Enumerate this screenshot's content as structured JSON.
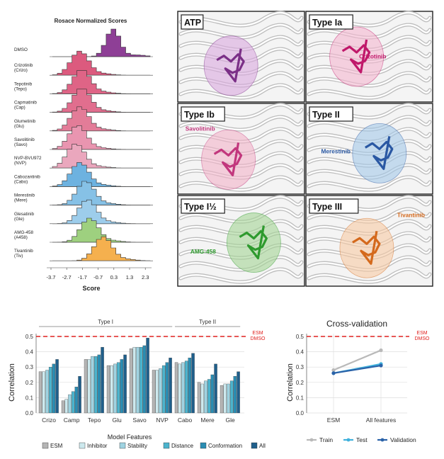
{
  "ridge": {
    "title": "Rosace Normalized Scores",
    "xlabel": "Score",
    "ticks": [
      "-3.7",
      "-2.7",
      "-1.7",
      "-0.7",
      "0.3",
      "1.3",
      "2.3"
    ],
    "rows": [
      {
        "line1": "DMSO",
        "line2": "",
        "color": "#8e3f96"
      },
      {
        "line1": "Crizotinib",
        "line2": "(Crizo)",
        "color": "#dc5a7e"
      },
      {
        "line1": "Tepotinib",
        "line2": "(Tepo)",
        "color": "#df6486"
      },
      {
        "line1": "Capmatinib",
        "line2": "(Cap)",
        "color": "#e16e8e"
      },
      {
        "line1": "Glumetinib",
        "line2": "(Glu)",
        "color": "#e37c98"
      },
      {
        "line1": "Savolitinib",
        "line2": "(Savo)",
        "color": "#e995b0"
      },
      {
        "line1": "NVP-BVU972",
        "line2": "(NVP)",
        "color": "#eaa7bd"
      },
      {
        "line1": "Cabozantinib",
        "line2": "(Cabo)",
        "color": "#6db2e0"
      },
      {
        "line1": "Merestinib",
        "line2": "(Mere)",
        "color": "#86c1e6"
      },
      {
        "line1": "Glesatinib",
        "line2": "(Gle)",
        "color": "#9dcdeb"
      },
      {
        "line1": "AMG-458",
        "line2": "(A458)",
        "color": "#9ed07f"
      },
      {
        "line1": "Tivantinib",
        "line2": "(Tiv)",
        "color": "#f5b04e"
      }
    ]
  },
  "structures": [
    {
      "title": "ATP",
      "ligand": "",
      "lig_color": "#7b2f87",
      "zone_color": "#d9a8de"
    },
    {
      "title": "Type Ia",
      "ligand": "Crizotinib",
      "lig_color": "#c0186a",
      "zone_color": "#f4b6cf"
    },
    {
      "title": "Type Ib",
      "ligand": "Savolitinib",
      "lig_color": "#c2377d",
      "zone_color": "#f2b3c8"
    },
    {
      "title": "Type II",
      "ligand": "Merestinib",
      "lig_color": "#2a58a3",
      "zone_color": "#a4c8e8"
    },
    {
      "title": "Type I½",
      "ligand": "AMG-458",
      "lig_color": "#2e9a2e",
      "zone_color": "#a3d394"
    },
    {
      "title": "Type III",
      "ligand": "Tivantinib",
      "lig_color": "#d4691c",
      "zone_color": "#f7c9a3"
    }
  ],
  "chart_data": [
    {
      "type": "bar",
      "ylabel": "Correlation",
      "xlabel": "Model Features",
      "ylim": [
        0,
        0.5
      ],
      "yticks": [
        "0.0",
        "0.1",
        "0.2",
        "0.3",
        "0.4",
        "0.5"
      ],
      "categories": [
        "Crizo",
        "Camp",
        "Tepo",
        "Glu",
        "Savo",
        "NVP",
        "Cabo",
        "Mere",
        "Gle"
      ],
      "groups": [
        {
          "label": "Type I",
          "from": 0,
          "to": 5
        },
        {
          "label": "Type II",
          "from": 6,
          "to": 8
        }
      ],
      "reference": {
        "value": 0.5,
        "label_line1": "ESM",
        "label_line2": "DMSO",
        "color": "#e0201e"
      },
      "series": [
        {
          "name": "ESM",
          "color": "#b5b5b5",
          "values": [
            0.27,
            0.08,
            0.35,
            0.31,
            0.42,
            0.28,
            0.33,
            0.2,
            0.18
          ]
        },
        {
          "name": "Inhibitor",
          "color": "#cde9ee",
          "values": [
            0.27,
            0.09,
            0.35,
            0.31,
            0.43,
            0.28,
            0.32,
            0.19,
            0.19
          ]
        },
        {
          "name": "Stability",
          "color": "#9fd3e1",
          "values": [
            0.28,
            0.12,
            0.37,
            0.32,
            0.43,
            0.29,
            0.33,
            0.21,
            0.19
          ]
        },
        {
          "name": "Distance",
          "color": "#4cb4cd",
          "values": [
            0.3,
            0.14,
            0.37,
            0.33,
            0.43,
            0.31,
            0.34,
            0.22,
            0.21
          ]
        },
        {
          "name": "Conformation",
          "color": "#2a8db3",
          "values": [
            0.32,
            0.17,
            0.38,
            0.35,
            0.44,
            0.33,
            0.36,
            0.25,
            0.24
          ]
        },
        {
          "name": "All",
          "color": "#1f5f8b",
          "values": [
            0.35,
            0.24,
            0.43,
            0.38,
            0.49,
            0.36,
            0.39,
            0.32,
            0.27
          ]
        }
      ]
    },
    {
      "type": "line",
      "title": "Cross-validation",
      "ylabel": "Correlation",
      "ylim": [
        0,
        0.5
      ],
      "yticks": [
        "0.0",
        "0.1",
        "0.2",
        "0.3",
        "0.4",
        "0.5"
      ],
      "x": [
        "ESM",
        "All features"
      ],
      "reference": {
        "value": 0.5,
        "label_line1": "ESM",
        "label_line2": "DMSO",
        "color": "#e0201e"
      },
      "series": [
        {
          "name": "Train",
          "color": "#b9b9b9",
          "values": [
            0.28,
            0.41
          ]
        },
        {
          "name": "Test",
          "color": "#3fb1dc",
          "values": [
            0.26,
            0.32
          ]
        },
        {
          "name": "Validation",
          "color": "#2a62a8",
          "values": [
            0.26,
            0.31
          ]
        }
      ]
    }
  ]
}
